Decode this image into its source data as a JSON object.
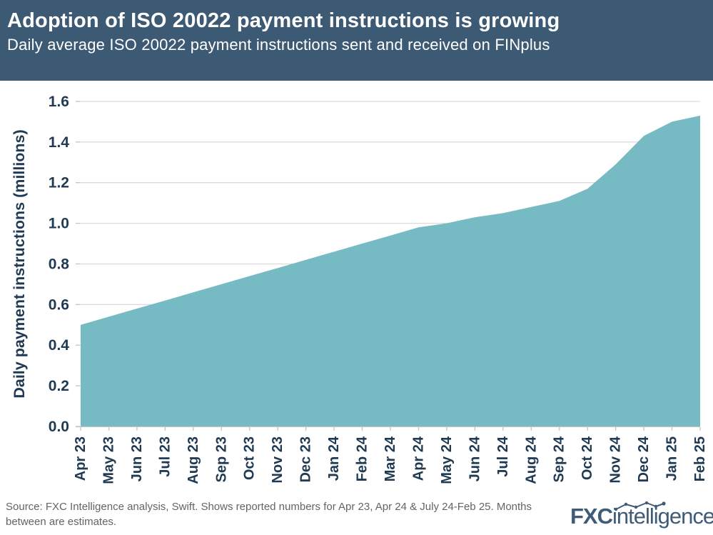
{
  "colors": {
    "header_bg": "#3d5a74",
    "title_text": "#ffffff",
    "area": "#76bac3",
    "axis_text": "#1f3a52",
    "grid": "#dcdcdc",
    "axis_line": "#c4c4c4",
    "footer_text": "#646464",
    "logo": "#3e5c78"
  },
  "chart_data": {
    "type": "area",
    "title": "Adoption of ISO 20022 payment instructions is growing",
    "subtitle": "Daily average ISO 20022 payment instructions sent and received on FINplus",
    "ylabel": "Daily payment instructions (millions)",
    "xlabel": "",
    "ylim": [
      0,
      1.6
    ],
    "ytick_step": 0.2,
    "grid": true,
    "legend_position": "none",
    "categories": [
      "Apr 23",
      "May 23",
      "Jun 23",
      "Jul 23",
      "Aug 23",
      "Sep 23",
      "Oct 23",
      "Nov 23",
      "Dec 23",
      "Jan 24",
      "Feb 24",
      "Mar 24",
      "Apr 24",
      "May 24",
      "Jun 24",
      "Jul 24",
      "Aug 24",
      "Sep 24",
      "Oct 24",
      "Nov 24",
      "Dec 24",
      "Jan 25",
      "Feb 25"
    ],
    "values": [
      0.5,
      0.54,
      0.58,
      0.62,
      0.66,
      0.7,
      0.74,
      0.78,
      0.82,
      0.86,
      0.9,
      0.94,
      0.98,
      1.0,
      1.03,
      1.05,
      1.08,
      1.11,
      1.17,
      1.29,
      1.43,
      1.5,
      1.53
    ]
  },
  "footer": {
    "source": "Source: FXC Intelligence analysis, Swift. Shows reported numbers for Apr 23, Apr 24 & July 24-Feb 25. Months between are estimates.",
    "logo_bold": "FXC",
    "logo_rest": "intelligence",
    "logo_tm": "™"
  }
}
